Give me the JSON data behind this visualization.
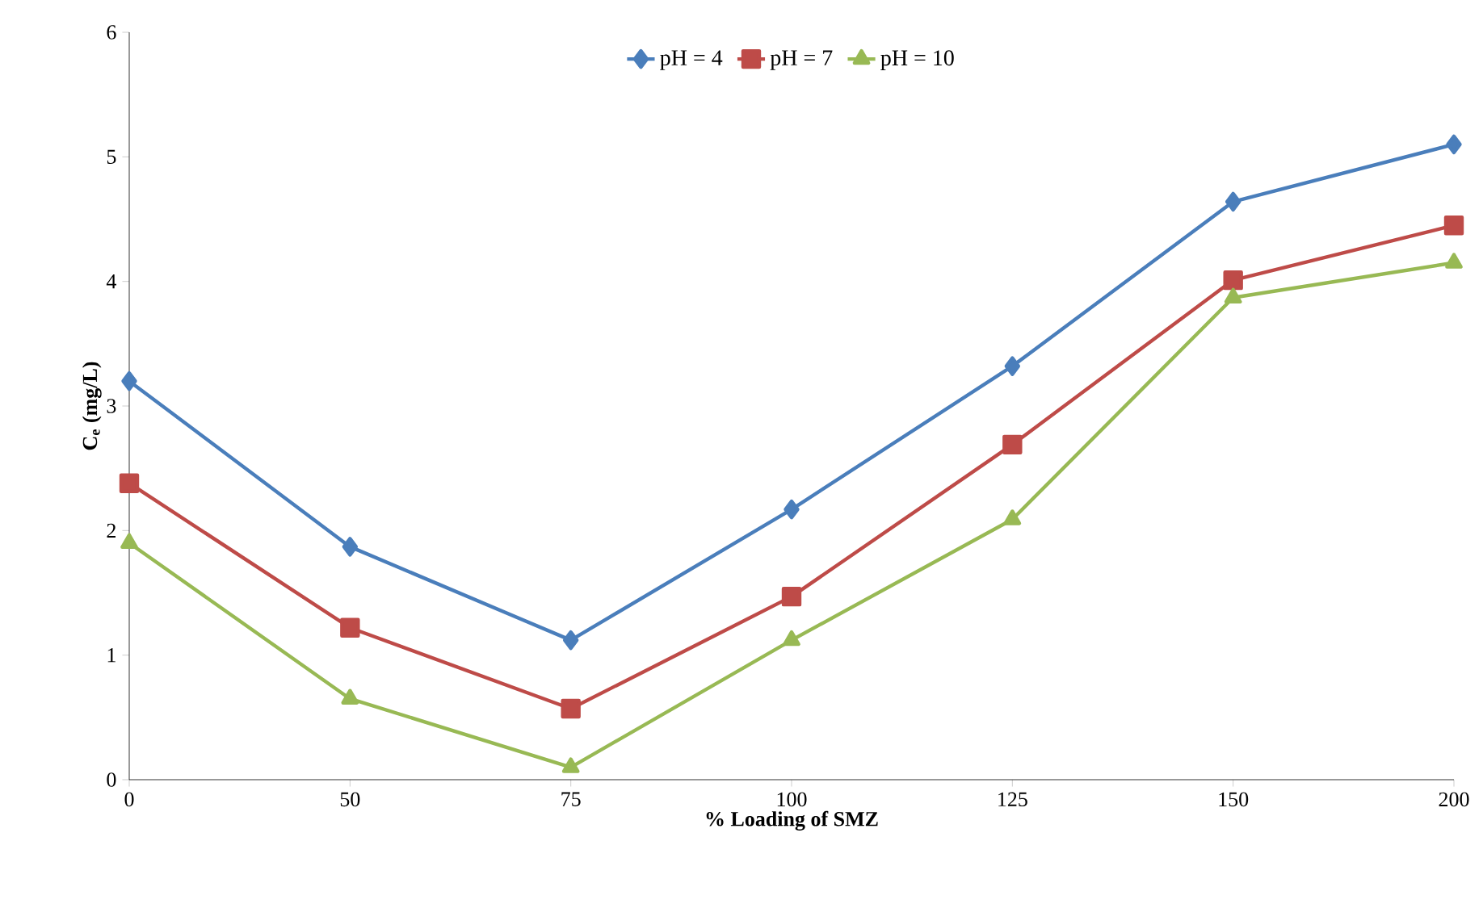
{
  "chart_data": {
    "type": "line",
    "xlabel": "% Loading of SMZ",
    "ylabel": "C$_{e}$ (mg/L)",
    "categories": [
      "0",
      "50",
      "75",
      "100",
      "125",
      "150",
      "200"
    ],
    "series": [
      {
        "name": "pH = 4",
        "color": "#4a7ebb",
        "marker": "diamond",
        "values": [
          3.2,
          1.87,
          1.12,
          2.17,
          3.32,
          4.64,
          5.1
        ]
      },
      {
        "name": "pH = 7",
        "color": "#be4b48",
        "marker": "square",
        "values": [
          2.38,
          1.22,
          0.57,
          1.47,
          2.69,
          4.01,
          4.45
        ]
      },
      {
        "name": "pH = 10",
        "color": "#98b954",
        "marker": "triangle",
        "values": [
          1.9,
          0.65,
          0.1,
          1.12,
          2.09,
          3.87,
          4.15
        ]
      }
    ],
    "ylim": [
      0,
      6
    ],
    "yticks": [
      0,
      1,
      2,
      3,
      4,
      5,
      6
    ],
    "grid": false,
    "legend": "top",
    "line_style": "solid"
  }
}
